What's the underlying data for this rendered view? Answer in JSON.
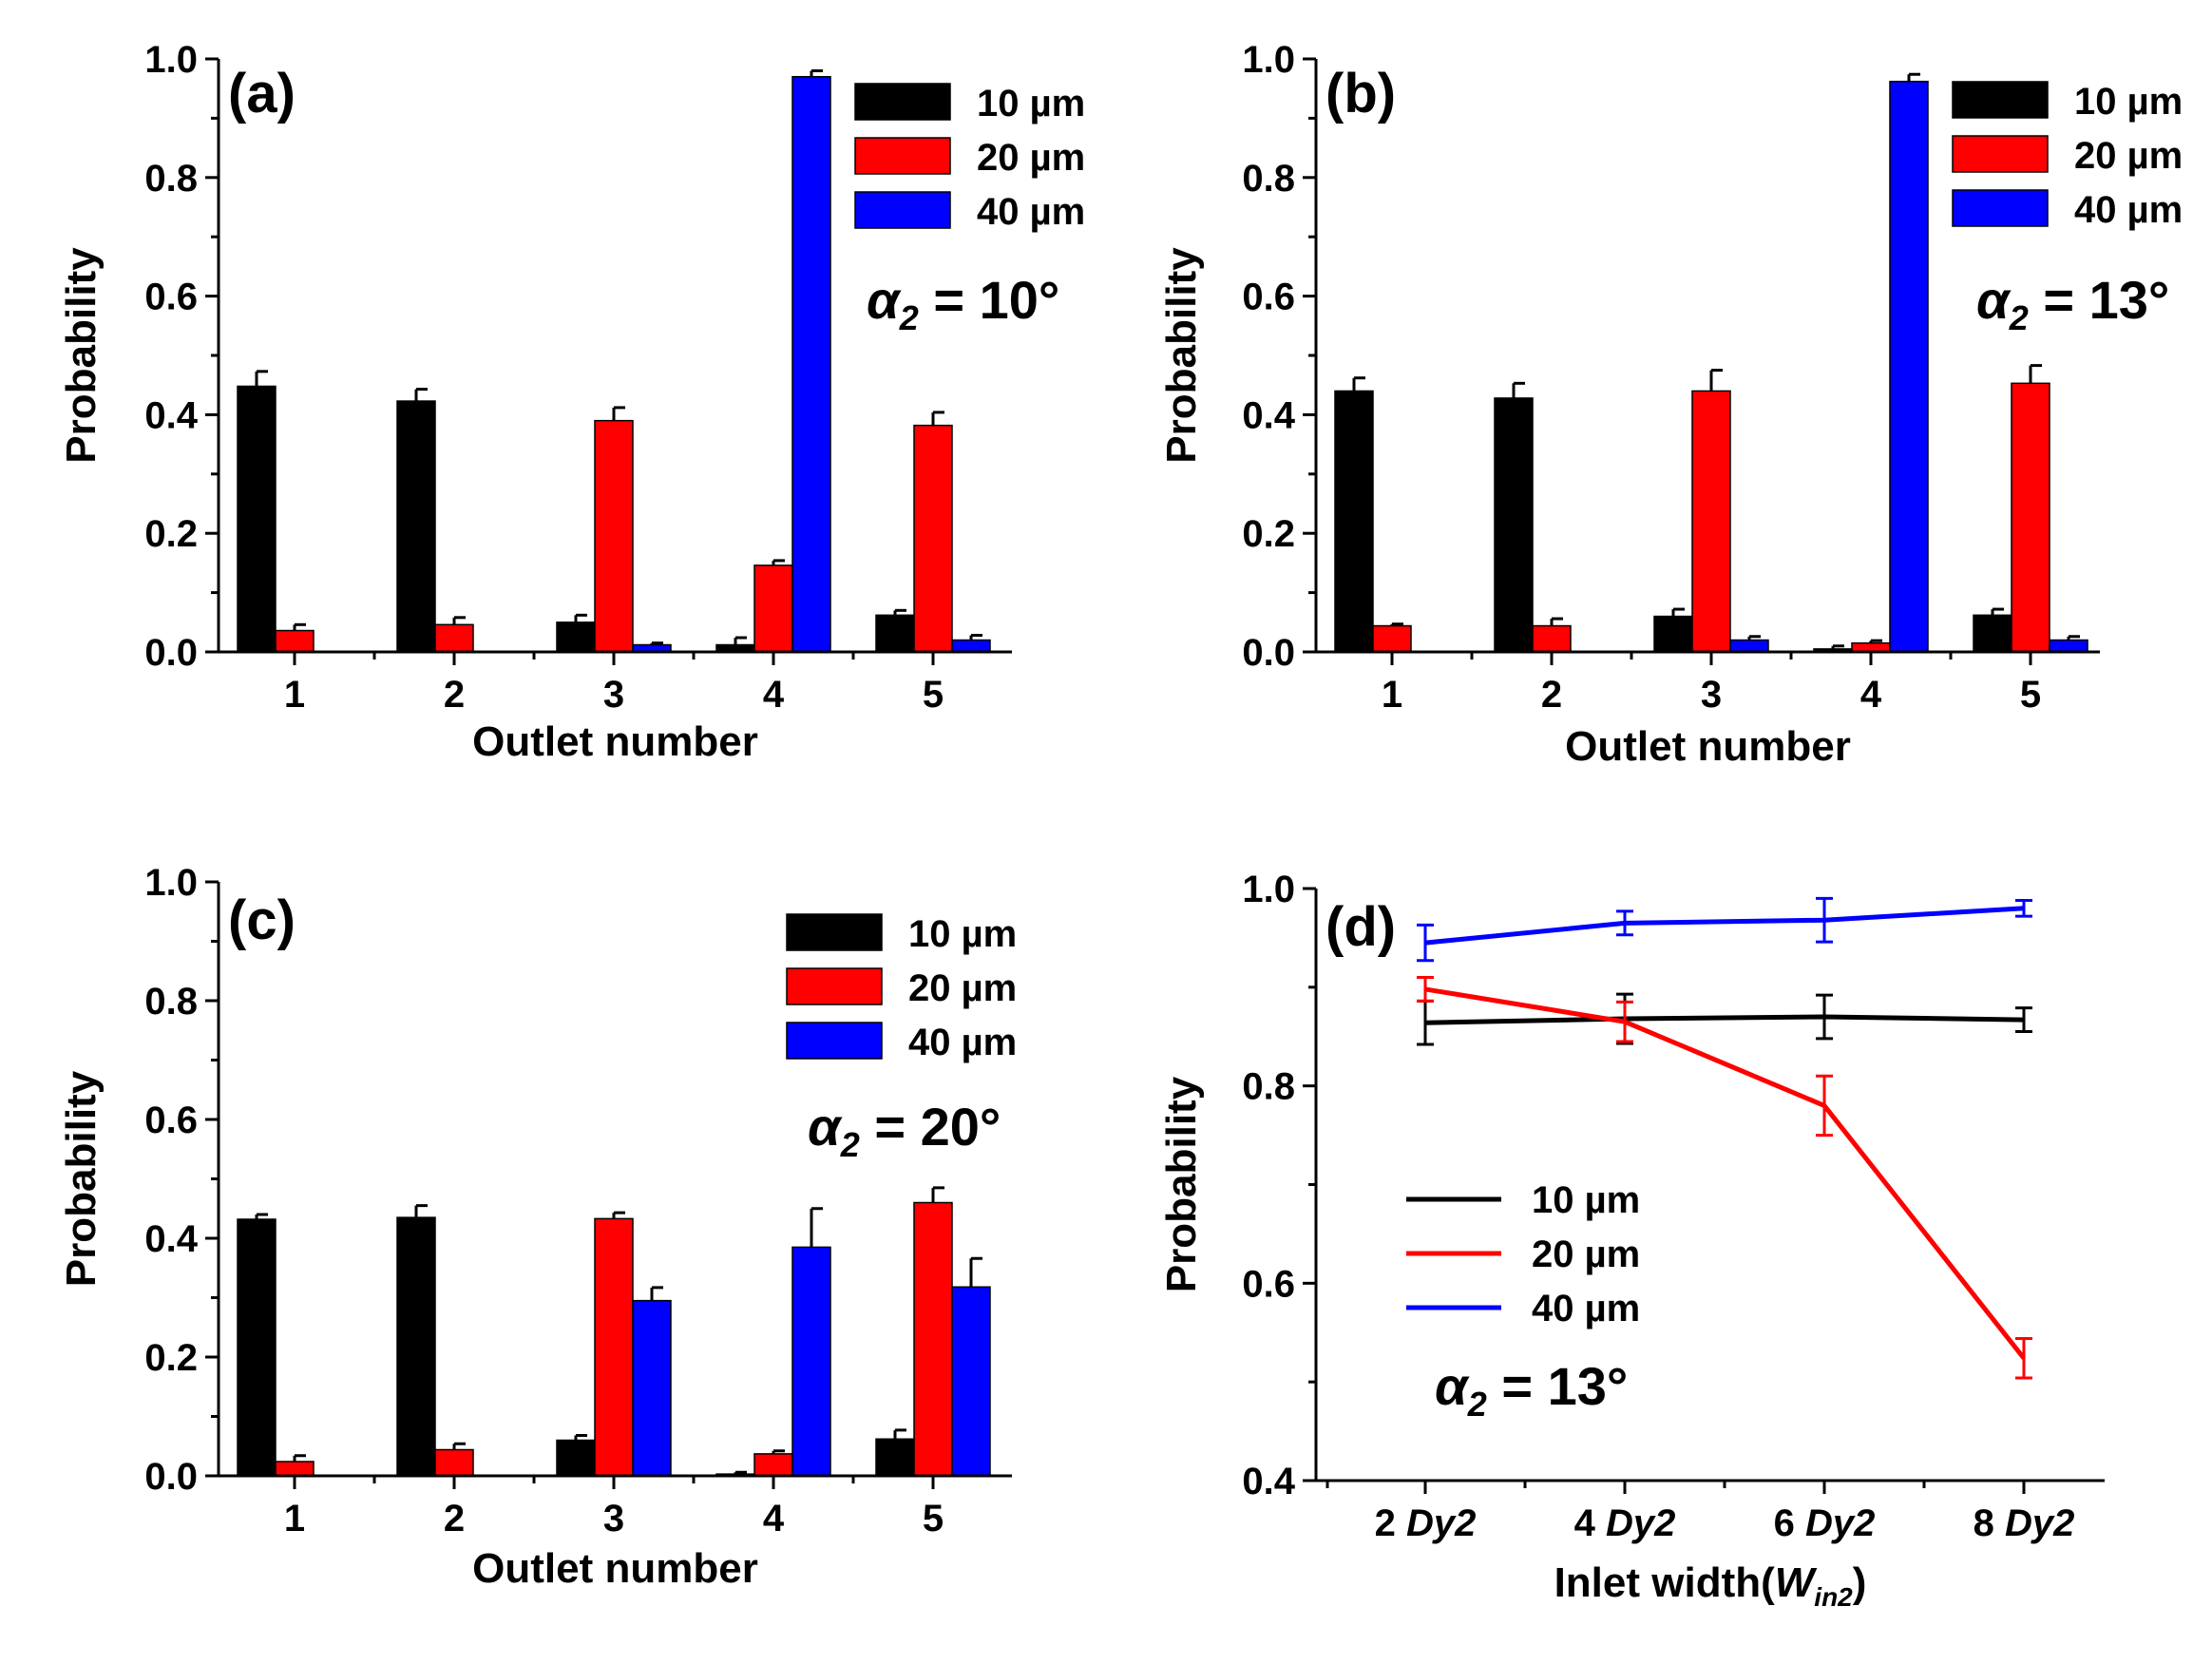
{
  "chart_data": [
    {
      "type": "bar",
      "panel_label": "(a)",
      "annotation": {
        "symbol": "α",
        "sub": "2",
        "rest": " = 10°"
      },
      "xlabel": "Outlet number",
      "ylabel": "Probability",
      "categories": [
        "1",
        "2",
        "3",
        "4",
        "5"
      ],
      "ylim": [
        0,
        1.0
      ],
      "yticks": [
        "0.0",
        "0.2",
        "0.4",
        "0.6",
        "0.8",
        "1.0"
      ],
      "legend_position": "top-right",
      "series": [
        {
          "name": "10 µm",
          "color": "#000000",
          "values": [
            0.448,
            0.423,
            0.05,
            0.012,
            0.062
          ],
          "errors": [
            0.025,
            0.02,
            0.012,
            0.012,
            0.008
          ]
        },
        {
          "name": "20 µm",
          "color": "#ff0000",
          "values": [
            0.036,
            0.046,
            0.39,
            0.146,
            0.382
          ],
          "errors": [
            0.01,
            0.012,
            0.022,
            0.008,
            0.022
          ]
        },
        {
          "name": "40 µm",
          "color": "#0000ff",
          "values": [
            0.0,
            0.0,
            0.012,
            0.97,
            0.02
          ],
          "errors": [
            0.0,
            0.0,
            0.003,
            0.01,
            0.008
          ]
        }
      ]
    },
    {
      "type": "bar",
      "panel_label": "(b)",
      "annotation": {
        "symbol": "α",
        "sub": "2",
        "rest": " = 13°"
      },
      "xlabel": "Outlet number",
      "ylabel": "Probability",
      "categories": [
        "1",
        "2",
        "3",
        "4",
        "5"
      ],
      "ylim": [
        0,
        1.0
      ],
      "yticks": [
        "0.0",
        "0.2",
        "0.4",
        "0.6",
        "0.8",
        "1.0"
      ],
      "legend_position": "top-right",
      "series": [
        {
          "name": "10 µm",
          "color": "#000000",
          "values": [
            0.44,
            0.428,
            0.06,
            0.005,
            0.062
          ],
          "errors": [
            0.022,
            0.025,
            0.012,
            0.005,
            0.01
          ]
        },
        {
          "name": "20 µm",
          "color": "#ff0000",
          "values": [
            0.044,
            0.044,
            0.44,
            0.015,
            0.453
          ],
          "errors": [
            0.003,
            0.012,
            0.035,
            0.004,
            0.03
          ]
        },
        {
          "name": "40 µm",
          "color": "#0000ff",
          "values": [
            0.0,
            0.0,
            0.02,
            0.962,
            0.02
          ],
          "errors": [
            0.0,
            0.0,
            0.006,
            0.012,
            0.006
          ]
        }
      ]
    },
    {
      "type": "bar",
      "panel_label": "(c)",
      "annotation": {
        "symbol": "α",
        "sub": "2",
        "rest": " = 20°"
      },
      "xlabel": "Outlet number",
      "ylabel": "Probability",
      "categories": [
        "1",
        "2",
        "3",
        "4",
        "5"
      ],
      "ylim": [
        0,
        1.0
      ],
      "yticks": [
        "0.0",
        "0.2",
        "0.4",
        "0.6",
        "0.8",
        "1.0"
      ],
      "legend_position": "top-right",
      "series": [
        {
          "name": "10 µm",
          "color": "#000000",
          "values": [
            0.432,
            0.435,
            0.06,
            0.003,
            0.062
          ],
          "errors": [
            0.008,
            0.02,
            0.008,
            0.003,
            0.015
          ]
        },
        {
          "name": "20 µm",
          "color": "#ff0000",
          "values": [
            0.024,
            0.044,
            0.433,
            0.037,
            0.46
          ],
          "errors": [
            0.01,
            0.01,
            0.01,
            0.005,
            0.025
          ]
        },
        {
          "name": "40 µm",
          "color": "#0000ff",
          "values": [
            0.0,
            0.0,
            0.295,
            0.385,
            0.318
          ],
          "errors": [
            0.0,
            0.0,
            0.022,
            0.065,
            0.048
          ]
        }
      ]
    },
    {
      "type": "line",
      "panel_label": "(d)",
      "annotation": {
        "symbol": "α",
        "sub": "2",
        "rest": " = 13°"
      },
      "xlabel": {
        "text": "Inlet width(",
        "var": "W",
        "sub": "in2",
        "close": ")"
      },
      "ylabel": "Probability",
      "categories": [
        {
          "num": "2 ",
          "var": "Dy2"
        },
        {
          "num": "4 ",
          "var": "Dy2"
        },
        {
          "num": "6 ",
          "var": "Dy2"
        },
        {
          "num": "8 ",
          "var": "Dy2"
        }
      ],
      "ylim": [
        0.4,
        1.0
      ],
      "yticks": [
        "0.4",
        "0.6",
        "0.8",
        "1.0"
      ],
      "legend_position": "center-left",
      "series": [
        {
          "name": "10 µm",
          "color": "#000000",
          "values": [
            0.864,
            0.868,
            0.87,
            0.867
          ],
          "errors": [
            0.022,
            0.025,
            0.022,
            0.012
          ]
        },
        {
          "name": "20 µm",
          "color": "#ff0000",
          "values": [
            0.898,
            0.865,
            0.78,
            0.524
          ],
          "errors": [
            0.012,
            0.02,
            0.03,
            0.02
          ]
        },
        {
          "name": "40 µm",
          "color": "#0000ff",
          "values": [
            0.945,
            0.965,
            0.968,
            0.98
          ],
          "errors": [
            0.018,
            0.012,
            0.022,
            0.008
          ]
        }
      ]
    }
  ]
}
